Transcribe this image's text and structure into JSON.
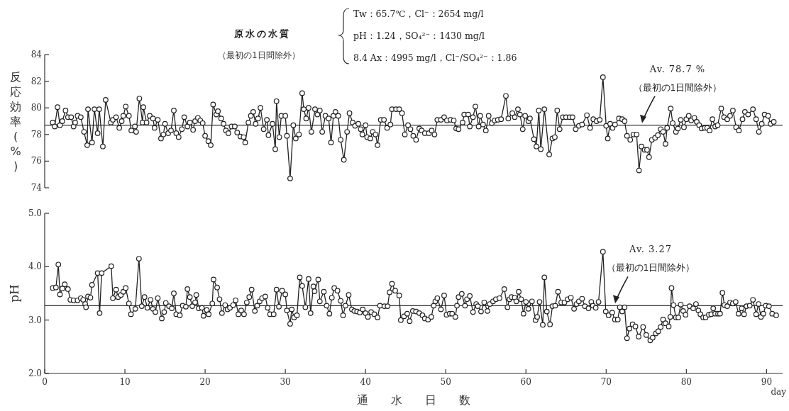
{
  "chart_data": [
    {
      "type": "line",
      "ylabel": "反応効率(%)",
      "color": "#222222",
      "marker": "circle",
      "line_style": "solid",
      "tick_labels": "y",
      "xlim": [
        0,
        92
      ],
      "ylim": [
        74,
        84
      ],
      "yticks": [
        74,
        76,
        78,
        80,
        82,
        84
      ],
      "x": [
        1.0,
        1.25,
        1.6,
        1.9,
        2.2,
        2.6,
        2.9,
        3.3,
        3.6,
        3.8,
        4.1,
        4.5,
        4.9,
        5.3,
        5.4,
        5.9,
        6.2,
        6.6,
        6.8,
        7.25,
        7.6,
        8.25,
        8.5,
        8.9,
        9.3,
        9.6,
        9.8,
        10.1,
        10.5,
        10.8,
        11.25,
        11.4,
        11.8,
        12.2,
        12.3,
        12.7,
        13.1,
        13.5,
        13.7,
        14.1,
        14.5,
        14.8,
        15.0,
        15.4,
        15.75,
        16.1,
        16.4,
        16.7,
        17.1,
        17.4,
        17.8,
        18.1,
        18.5,
        18.75,
        19.1,
        19.4,
        19.7,
        20.0,
        20.4,
        20.7,
        21.0,
        21.4,
        21.6,
        22.0,
        22.3,
        22.6,
        22.9,
        23.3,
        23.7,
        24.0,
        24.4,
        24.8,
        25.0,
        25.4,
        25.7,
        26.0,
        26.3,
        26.6,
        26.9,
        27.3,
        27.7,
        27.9,
        28.4,
        28.75,
        28.9,
        29.25,
        29.5,
        30.0,
        30.2,
        30.6,
        31.0,
        31.3,
        31.7,
        32.1,
        32.3,
        32.6,
        32.9,
        33.25,
        33.7,
        34.0,
        34.3,
        34.6,
        35.0,
        35.4,
        35.7,
        36.0,
        36.25,
        36.6,
        36.9,
        37.3,
        37.7,
        38.0,
        38.4,
        38.7,
        39.1,
        39.4,
        39.6,
        40.0,
        40.2,
        40.6,
        40.9,
        41.25,
        41.5,
        41.9,
        42.3,
        42.7,
        43.1,
        43.3,
        43.8,
        44.2,
        44.55,
        44.9,
        45.3,
        45.6,
        45.95,
        46.3,
        46.7,
        47.0,
        47.4,
        47.9,
        48.25,
        48.6,
        48.95,
        49.4,
        49.8,
        50.15,
        50.6,
        51.0,
        51.3,
        51.6,
        52.1,
        52.3,
        52.8,
        53.0,
        53.4,
        53.7,
        54.1,
        54.3,
        54.65,
        55.0,
        55.35,
        55.75,
        56.1,
        56.5,
        56.9,
        57.5,
        57.8,
        58.3,
        58.6,
        59.0,
        59.25,
        59.6,
        59.9,
        60.3,
        60.5,
        61.0,
        61.3,
        61.6,
        61.85,
        62.3,
        62.9,
        63.3,
        63.6,
        63.9,
        64.2,
        64.6,
        65.0,
        65.45,
        65.8,
        66.2,
        66.6,
        67.0,
        67.6,
        68.0,
        68.4,
        68.8,
        69.2,
        69.6,
        70.0,
        70.2,
        70.5,
        70.8,
        71.1,
        71.6,
        72.0,
        72.3,
        72.6,
        73.0,
        73.4,
        73.8,
        74.1,
        74.4,
        74.8,
        75.1,
        75.35,
        75.7,
        76.1,
        76.45,
        76.8,
        77.1,
        77.4,
        77.6,
        78.05,
        78.3,
        78.7,
        78.95,
        79.3,
        79.7,
        80.0,
        80.3,
        80.6,
        81.0,
        81.3,
        81.6,
        81.9,
        82.3,
        82.6,
        82.9,
        83.25,
        83.6,
        83.9,
        84.35,
        84.7,
        85.1,
        85.45,
        85.8,
        86.2,
        86.55,
        87.0,
        87.3,
        87.7,
        88.3,
        88.7,
        89.05,
        89.4,
        89.75,
        90.2,
        90.5,
        90.9
      ],
      "values": [
        78.9,
        78.6,
        80.05,
        78.7,
        79.0,
        79.8,
        79.3,
        79.3,
        78.6,
        78.9,
        79.4,
        79.3,
        78.2,
        77.2,
        79.9,
        77.4,
        79.9,
        78.1,
        79.9,
        77.1,
        80.6,
        78.9,
        79.1,
        79.3,
        78.5,
        79.0,
        79.4,
        80.1,
        79.4,
        78.3,
        78.6,
        78.2,
        80.7,
        78.9,
        80.05,
        78.9,
        79.4,
        79.2,
        78.5,
        79.1,
        77.7,
        78.0,
        78.8,
        78.1,
        78.3,
        79.8,
        78.1,
        77.8,
        78.4,
        79.3,
        78.6,
        78.9,
        78.35,
        79.0,
        79.25,
        79.05,
        78.85,
        77.9,
        77.5,
        77.2,
        80.25,
        79.5,
        79.75,
        79.2,
        78.8,
        78.3,
        78.1,
        78.6,
        78.6,
        78.15,
        77.85,
        77.8,
        77.4,
        78.9,
        79.4,
        79.7,
        78.8,
        79.2,
        80.0,
        78.4,
        79.1,
        77.95,
        78.8,
        76.9,
        80.5,
        77.8,
        79.4,
        79.4,
        77.9,
        74.7,
        78.7,
        77.7,
        78.0,
        81.1,
        79.9,
        79.2,
        80.0,
        78.2,
        79.9,
        79.5,
        79.8,
        78.2,
        79.4,
        79.2,
        77.4,
        79.4,
        79.7,
        79.4,
        77.6,
        76.1,
        78.2,
        79.6,
        78.9,
        78.65,
        78.8,
        78.4,
        78.0,
        78.7,
        77.8,
        77.7,
        78.2,
        78.0,
        77.2,
        79.1,
        79.1,
        78.5,
        78.75,
        79.9,
        79.9,
        79.9,
        79.6,
        78.0,
        78.7,
        78.4,
        77.9,
        77.6,
        78.45,
        78.3,
        78.1,
        78.1,
        78.3,
        78.0,
        79.1,
        79.1,
        79.3,
        79.05,
        79.1,
        79.05,
        78.45,
        78.4,
        78.9,
        79.5,
        79.5,
        78.6,
        79.3,
        80.1,
        78.6,
        79.4,
        78.75,
        78.3,
        79.4,
        78.85,
        79.05,
        79.1,
        79.15,
        80.9,
        79.2,
        79.6,
        79.3,
        79.9,
        79.5,
        78.4,
        79.4,
        79.0,
        79.2,
        77.65,
        77.1,
        79.8,
        76.9,
        79.9,
        76.5,
        77.7,
        77.8,
        79.8,
        78.4,
        79.3,
        79.3,
        79.3,
        79.3,
        78.4,
        78.65,
        78.75,
        79.45,
        78.5,
        79.15,
        79.0,
        79.1,
        82.3,
        78.65,
        77.7,
        78.8,
        78.5,
        78.75,
        79.2,
        79.15,
        79.0,
        77.9,
        77.6,
        78.0,
        78.0,
        75.3,
        77.1,
        76.85,
        76.85,
        76.3,
        77.6,
        77.75,
        77.95,
        78.4,
        78.2,
        77.3,
        78.5,
        79.95,
        78.85,
        78.2,
        78.45,
        79.1,
        78.55,
        79.15,
        79.4,
        79.05,
        79.25,
        78.95,
        78.7,
        78.45,
        78.5,
        78.5,
        78.3,
        79.15,
        78.6,
        78.7,
        79.95,
        79.3,
        79.15,
        79.4,
        79.8,
        78.55,
        78.3,
        79.15,
        79.7,
        79.5,
        79.9,
        79.15,
        78.2,
        78.8,
        79.5,
        79.4,
        78.8,
        78.95
      ],
      "ref_lines": [
        {
          "axis": "y",
          "value": 78.7,
          "label": "Av. 78.7 %"
        }
      ],
      "annotations": [
        "原水の水質",
        "（最初の1日間除外）",
        "Tw：65.7℃，Cl⁻：2654 mg/l",
        "pH：1.24，SO₄²⁻：1430 mg/l",
        "8.4 Ax：4995 mg/l，Cl⁻/SO₄²⁻：1.86",
        "（最初の1日間除外）"
      ]
    },
    {
      "type": "line",
      "ylabel": "pH",
      "xlabel": "通 水 日 数",
      "color": "#222222",
      "marker": "circle",
      "line_style": "solid",
      "xlim": [
        0,
        92
      ],
      "ylim": [
        2,
        5
      ],
      "xticks": [
        0,
        10,
        20,
        30,
        40,
        50,
        60,
        70,
        80,
        90
      ],
      "yticks": [
        {
          "value": 2,
          "label": "2.0"
        },
        {
          "value": 3,
          "label": "3.0"
        },
        {
          "value": 4,
          "label": "4.0"
        },
        {
          "value": 5,
          "label": "5.0"
        }
      ],
      "x": [
        1.0,
        1.4,
        1.7,
        1.9,
        2.2,
        2.5,
        2.9,
        3.2,
        3.6,
        4.1,
        4.5,
        4.8,
        5.05,
        5.15,
        5.4,
        5.7,
        5.9,
        6.6,
        6.85,
        7.1,
        8.3,
        8.5,
        8.9,
        9.15,
        9.5,
        9.8,
        10.1,
        10.5,
        10.75,
        11.3,
        11.75,
        12.1,
        12.45,
        12.8,
        13.2,
        13.5,
        13.8,
        14.1,
        14.6,
        14.9,
        15.1,
        15.5,
        15.85,
        16.1,
        16.4,
        16.85,
        17.2,
        17.6,
        17.8,
        18.1,
        18.4,
        18.75,
        18.9,
        19.2,
        19.6,
        19.8,
        20.2,
        20.45,
        20.9,
        21.05,
        21.5,
        21.8,
        22.1,
        22.5,
        22.8,
        23.1,
        23.5,
        23.8,
        24.15,
        24.5,
        24.85,
        25.2,
        25.5,
        25.8,
        26.2,
        26.5,
        26.8,
        27.1,
        27.5,
        27.8,
        28.1,
        28.55,
        28.9,
        29.2,
        29.6,
        30.0,
        30.2,
        30.6,
        30.8,
        31.1,
        31.45,
        31.8,
        32.1,
        32.5,
        32.9,
        33.15,
        33.5,
        33.65,
        34.1,
        34.3,
        34.8,
        35.15,
        35.5,
        35.8,
        36.1,
        36.5,
        36.9,
        37.2,
        37.5,
        37.9,
        38.3,
        38.6,
        38.95,
        39.3,
        39.65,
        40.0,
        40.3,
        40.7,
        41.1,
        41.5,
        41.8,
        42.35,
        42.75,
        43.0,
        43.3,
        43.7,
        44.2,
        44.4,
        44.8,
        45.2,
        45.5,
        45.9,
        46.3,
        46.7,
        47.1,
        47.4,
        47.8,
        48.2,
        48.5,
        48.7,
        48.95,
        49.4,
        49.8,
        50.1,
        50.5,
        50.8,
        51.2,
        51.4,
        51.6,
        52.0,
        52.4,
        52.65,
        53.0,
        53.4,
        53.8,
        54.0,
        54.4,
        54.8,
        55.2,
        55.5,
        55.9,
        56.25,
        56.7,
        57.3,
        57.7,
        57.95,
        58.2,
        58.6,
        58.8,
        59.1,
        59.4,
        59.7,
        60.0,
        60.3,
        60.75,
        61.2,
        61.4,
        61.7,
        62.1,
        62.3,
        62.6,
        63.0,
        63.3,
        63.65,
        64.0,
        64.4,
        64.8,
        65.2,
        65.6,
        66.0,
        66.3,
        66.6,
        67.0,
        67.35,
        67.8,
        68.15,
        68.35,
        68.7,
        69.05,
        69.6,
        69.95,
        70.3,
        70.75,
        71.1,
        71.45,
        71.7,
        72.0,
        72.3,
        72.6,
        72.9,
        73.3,
        73.65,
        74.05,
        74.6,
        75.0,
        75.5,
        75.8,
        76.2,
        76.5,
        76.8,
        77.1,
        77.4,
        77.8,
        78.0,
        78.15,
        78.4,
        78.7,
        79.0,
        79.3,
        79.6,
        79.9,
        80.4,
        80.85,
        81.2,
        81.5,
        81.75,
        82.1,
        82.4,
        82.8,
        83.1,
        83.35,
        83.6,
        83.95,
        84.2,
        84.5,
        84.75,
        85.1,
        85.45,
        85.8,
        86.15,
        86.5,
        86.9,
        87.2,
        87.5,
        87.9,
        88.3,
        88.7,
        89.0,
        89.3,
        89.6,
        89.9,
        90.3,
        90.7,
        91.2
      ],
      "values": [
        3.6,
        3.61,
        4.04,
        3.48,
        3.59,
        3.67,
        3.58,
        3.38,
        3.37,
        3.37,
        3.41,
        3.38,
        3.3,
        3.24,
        3.44,
        3.42,
        3.66,
        3.88,
        3.13,
        3.88,
        4.01,
        3.41,
        3.57,
        3.43,
        3.47,
        3.53,
        3.6,
        3.31,
        3.11,
        3.21,
        4.15,
        3.26,
        3.43,
        3.23,
        3.38,
        3.21,
        3.15,
        3.41,
        3.03,
        3.15,
        3.32,
        3.26,
        3.22,
        3.5,
        3.11,
        3.09,
        3.27,
        3.25,
        3.58,
        3.43,
        3.26,
        3.33,
        3.47,
        3.22,
        3.23,
        3.08,
        3.19,
        3.11,
        3.31,
        3.76,
        3.61,
        3.39,
        3.13,
        3.28,
        3.2,
        3.23,
        3.28,
        3.37,
        3.11,
        3.18,
        3.11,
        3.33,
        3.43,
        3.57,
        3.17,
        3.27,
        3.35,
        3.41,
        3.44,
        3.23,
        3.11,
        3.11,
        3.57,
        3.25,
        3.55,
        3.48,
        3.18,
        2.93,
        3.2,
        3.05,
        3.09,
        3.8,
        3.64,
        3.24,
        3.77,
        3.13,
        3.63,
        3.54,
        3.76,
        3.35,
        3.53,
        3.27,
        3.12,
        3.42,
        3.6,
        3.55,
        3.36,
        3.09,
        3.27,
        3.47,
        3.2,
        3.17,
        3.16,
        3.14,
        3.2,
        3.13,
        3.06,
        3.15,
        3.11,
        3.05,
        3.27,
        3.26,
        3.26,
        3.52,
        3.68,
        3.55,
        3.46,
        3.0,
        3.07,
        3.12,
        2.98,
        3.17,
        3.16,
        3.13,
        3.09,
        3.03,
        3.01,
        3.06,
        3.27,
        3.35,
        3.41,
        3.2,
        3.46,
        3.1,
        3.12,
        3.12,
        3.06,
        3.27,
        3.43,
        3.49,
        3.27,
        3.39,
        3.45,
        3.15,
        3.3,
        3.26,
        3.16,
        3.33,
        3.17,
        3.3,
        3.35,
        3.39,
        3.41,
        3.58,
        3.24,
        3.39,
        3.43,
        3.42,
        3.35,
        3.53,
        3.39,
        3.12,
        3.34,
        3.21,
        3.35,
        3.0,
        3.06,
        3.34,
        2.91,
        3.8,
        3.16,
        2.92,
        3.26,
        3.27,
        3.53,
        3.33,
        3.33,
        3.39,
        3.42,
        3.21,
        3.3,
        3.35,
        3.4,
        3.26,
        3.22,
        3.34,
        3.27,
        3.23,
        3.34,
        4.28,
        3.16,
        3.09,
        3.14,
        3.01,
        3.01,
        3.24,
        3.16,
        3.24,
        2.66,
        2.84,
        2.92,
        2.88,
        2.69,
        2.87,
        2.72,
        2.62,
        2.67,
        2.75,
        2.79,
        2.87,
        3.01,
        2.94,
        2.88,
        3.06,
        3.6,
        3.28,
        3.05,
        3.05,
        3.29,
        3.17,
        3.1,
        3.26,
        3.22,
        3.3,
        3.18,
        3.11,
        3.05,
        3.05,
        3.1,
        3.11,
        3.22,
        3.12,
        3.12,
        3.12,
        3.51,
        3.28,
        3.26,
        3.33,
        3.31,
        3.34,
        3.12,
        3.22,
        3.11,
        3.26,
        3.27,
        3.38,
        3.11,
        3.3,
        3.06,
        3.12,
        3.27,
        3.26,
        3.12,
        3.09
      ],
      "ref_lines": [
        {
          "axis": "y",
          "value": 3.27,
          "label": "Av. 3.27"
        }
      ],
      "annotations": [
        "（最初の1日間除外）",
        "day"
      ]
    }
  ]
}
